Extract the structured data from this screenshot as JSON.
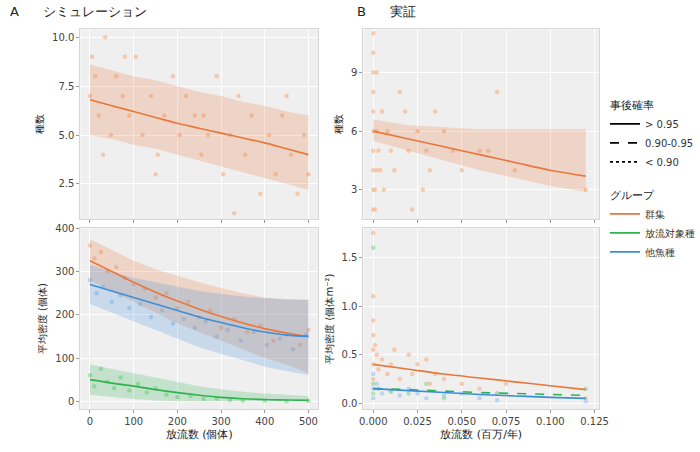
{
  "chart_data": [
    {
      "type": "scatter",
      "title": "シミュレーション",
      "annotations": [
        "A"
      ],
      "y_label": "種数",
      "xlim": [
        -22,
        522
      ],
      "xticks": [
        0,
        100,
        200,
        300,
        400,
        500
      ],
      "ylim": [
        0.7,
        10.4
      ],
      "yticks": [
        {
          "value": 2.5,
          "label": "2.5"
        },
        {
          "value": 5,
          "label": "5.0"
        },
        {
          "value": 7.5,
          "label": "7.5"
        },
        {
          "value": 10,
          "label": "10.0"
        }
      ],
      "grid": true,
      "tick_labels": "y",
      "series": [
        {
          "type": "scatter",
          "color": "#f5b892",
          "x": [
            0,
            5,
            12,
            20,
            35,
            48,
            60,
            75,
            90,
            105,
            120,
            140,
            155,
            170,
            190,
            205,
            220,
            240,
            255,
            270,
            290,
            305,
            320,
            340,
            355,
            370,
            390,
            410,
            425,
            440,
            460,
            475,
            490,
            500,
            30,
            80,
            150,
            260,
            330,
            450
          ],
          "values": [
            7,
            9,
            8,
            6,
            10,
            5,
            8,
            7,
            6,
            9,
            5,
            7,
            4,
            6,
            8,
            5,
            7,
            6,
            4,
            5,
            8,
            3,
            5,
            7,
            4,
            6,
            2,
            5,
            3,
            6,
            4,
            2,
            5,
            3,
            4,
            9,
            3,
            6,
            1,
            7
          ]
        },
        {
          "type": "line",
          "color": "#e8773a",
          "line_style": "solid",
          "x": [
            0,
            50,
            100,
            150,
            200,
            250,
            300,
            350,
            400,
            450,
            500
          ],
          "values": [
            6.8,
            6.5,
            6.2,
            5.9,
            5.6,
            5.35,
            5.1,
            4.85,
            4.6,
            4.3,
            4.0
          ],
          "lower": [
            5.0,
            4.8,
            4.5,
            4.3,
            4.0,
            3.7,
            3.4,
            3.1,
            2.8,
            2.5,
            2.2
          ],
          "upper": [
            8.6,
            8.3,
            8.0,
            7.8,
            7.5,
            7.2,
            7.0,
            6.7,
            6.5,
            6.2,
            6.0
          ]
        }
      ]
    },
    {
      "type": "scatter",
      "x_label": "放流数 (個体)",
      "y_label": "平均密度 (個体)",
      "xlim": [
        -22,
        522
      ],
      "xticks": [
        0,
        100,
        200,
        300,
        400,
        500
      ],
      "ylim": [
        -18,
        400
      ],
      "yticks": [
        0,
        100,
        200,
        300,
        400
      ],
      "grid": true,
      "series": [
        {
          "type": "scatter",
          "name": "群集",
          "color": "#f5b892",
          "x": [
            0,
            10,
            25,
            40,
            60,
            80,
            100,
            125,
            150,
            175,
            200,
            225,
            250,
            275,
            300,
            330,
            360,
            390,
            420,
            450,
            480,
            500
          ],
          "values": [
            360,
            330,
            345,
            300,
            310,
            285,
            270,
            260,
            240,
            250,
            215,
            230,
            195,
            210,
            170,
            190,
            160,
            175,
            140,
            155,
            130,
            165
          ]
        },
        {
          "type": "scatter",
          "name": "他魚種",
          "color": "#a9c8f0",
          "x": [
            0,
            15,
            30,
            50,
            70,
            90,
            115,
            140,
            165,
            190,
            215,
            240,
            265,
            290,
            315,
            345,
            375,
            405,
            435,
            465,
            495
          ],
          "values": [
            280,
            250,
            265,
            230,
            245,
            215,
            225,
            195,
            210,
            180,
            190,
            170,
            185,
            150,
            165,
            140,
            160,
            130,
            145,
            120,
            155
          ]
        },
        {
          "type": "scatter",
          "name": "放流対象種",
          "color": "#8fdc9c",
          "x": [
            0,
            10,
            25,
            40,
            55,
            70,
            90,
            110,
            130,
            150,
            175,
            200,
            230,
            260,
            290,
            320,
            350,
            400,
            450,
            500
          ],
          "values": [
            60,
            35,
            75,
            45,
            30,
            55,
            25,
            40,
            20,
            30,
            15,
            10,
            12,
            5,
            6,
            3,
            2,
            1,
            0,
            1
          ]
        },
        {
          "type": "line",
          "name": "群集",
          "color": "#e8773a",
          "line_style": "solid",
          "x": [
            0,
            50,
            100,
            150,
            200,
            250,
            300,
            350,
            400,
            450,
            500
          ],
          "values": [
            325,
            300,
            275,
            252,
            232,
            213,
            196,
            181,
            168,
            158,
            150
          ],
          "lower": [
            280,
            255,
            230,
            205,
            180,
            160,
            140,
            120,
            100,
            85,
            65
          ],
          "upper": [
            375,
            350,
            325,
            305,
            290,
            275,
            262,
            250,
            240,
            235,
            235
          ]
        },
        {
          "type": "line",
          "name": "他魚種",
          "color": "#3a8fd9",
          "line_style": "solid",
          "x": [
            0,
            50,
            100,
            150,
            200,
            250,
            300,
            350,
            400,
            450,
            500
          ],
          "values": [
            270,
            255,
            240,
            225,
            210,
            195,
            182,
            170,
            160,
            153,
            150
          ],
          "lower": [
            225,
            205,
            185,
            165,
            145,
            125,
            110,
            95,
            80,
            70,
            60
          ],
          "upper": [
            315,
            300,
            285,
            275,
            265,
            255,
            248,
            242,
            238,
            236,
            235
          ]
        },
        {
          "type": "line",
          "name": "放流対象種",
          "color": "#2eb34f",
          "line_style": "solid",
          "x": [
            0,
            50,
            100,
            150,
            200,
            250,
            300,
            350,
            400,
            450,
            500
          ],
          "values": [
            50,
            42,
            35,
            27,
            20,
            14,
            9,
            6,
            4,
            3,
            2
          ],
          "lower": [
            15,
            10,
            5,
            2,
            0,
            0,
            0,
            0,
            0,
            0,
            0
          ],
          "upper": [
            85,
            75,
            65,
            55,
            45,
            35,
            28,
            22,
            18,
            15,
            12
          ]
        }
      ]
    },
    {
      "type": "scatter",
      "title": "実証",
      "annotations": [
        "B"
      ],
      "y_label": "種数",
      "xlim": [
        -0.0055,
        0.1275
      ],
      "xticks": [
        {
          "value": 0,
          "label": "0.000"
        },
        {
          "value": 0.025,
          "label": "0.025"
        },
        {
          "value": 0.05,
          "label": "0.050"
        },
        {
          "value": 0.075,
          "label": "0.075"
        },
        {
          "value": 0.1,
          "label": "0.100"
        },
        {
          "value": 0.125,
          "label": "0.125"
        }
      ],
      "ylim": [
        1.5,
        11.2
      ],
      "yticks": [
        3,
        6,
        9
      ],
      "grid": true,
      "tick_labels": "y",
      "series": [
        {
          "type": "scatter",
          "color": "#f5b892",
          "x": [
            0,
            0,
            0,
            0,
            0,
            0,
            0,
            0,
            0.001,
            0.001,
            0.002,
            0.002,
            0.003,
            0.004,
            0.005,
            0.006,
            0.008,
            0.01,
            0.012,
            0.015,
            0.018,
            0.02,
            0.022,
            0.025,
            0.028,
            0.03,
            0.032,
            0.035,
            0.04,
            0.045,
            0.05,
            0.06,
            0.065,
            0.07,
            0.08,
            0.12,
            0.002,
            0,
            0
          ],
          "values": [
            11,
            10,
            9,
            8,
            7,
            6,
            5,
            4,
            3,
            2,
            9,
            6,
            5,
            4,
            7,
            3,
            6,
            5,
            4,
            8,
            7,
            5,
            2,
            6,
            3,
            5,
            4,
            7,
            6,
            5,
            4,
            5,
            5,
            8,
            4,
            3,
            4,
            3,
            2
          ]
        },
        {
          "type": "line",
          "color": "#e8773a",
          "line_style": "solid",
          "x": [
            0,
            0.02,
            0.04,
            0.06,
            0.08,
            0.1,
            0.12
          ],
          "values": [
            6.0,
            5.6,
            5.2,
            4.8,
            4.4,
            4.0,
            3.7
          ],
          "lower": [
            5.5,
            5.0,
            4.5,
            4.0,
            3.6,
            3.2,
            2.9
          ],
          "upper": [
            6.6,
            6.3,
            6.2,
            6.1,
            6.1,
            6.1,
            6.1
          ]
        }
      ]
    },
    {
      "type": "scatter",
      "x_label": "放流数 (百万/年)",
      "y_label": "平均密度 (個体m⁻²)",
      "xlim": [
        -0.0055,
        0.1275
      ],
      "xticks": [
        {
          "value": 0,
          "label": "0.000"
        },
        {
          "value": 0.025,
          "label": "0.025"
        },
        {
          "value": 0.05,
          "label": "0.050"
        },
        {
          "value": 0.075,
          "label": "0.075"
        },
        {
          "value": 0.1,
          "label": "0.100"
        },
        {
          "value": 0.125,
          "label": "0.125"
        }
      ],
      "ylim": [
        -0.06,
        1.8
      ],
      "yticks": [
        {
          "value": 0,
          "label": "0.0"
        },
        {
          "value": 0.5,
          "label": "0.5"
        },
        {
          "value": 1,
          "label": "1.0"
        },
        {
          "value": 1.5,
          "label": "1.5"
        }
      ],
      "grid": true,
      "series": [
        {
          "type": "scatter",
          "name": "群集",
          "color": "#f5b892",
          "x": [
            0,
            0,
            0,
            0,
            0,
            0,
            0,
            0.001,
            0.002,
            0.003,
            0.005,
            0.008,
            0.01,
            0.012,
            0.015,
            0.02,
            0.022,
            0.025,
            0.03,
            0.032,
            0.035,
            0.04,
            0.05,
            0.06,
            0.07,
            0.075,
            0.12
          ],
          "values": [
            1.75,
            1.1,
            0.85,
            0.7,
            0.55,
            0.4,
            0.25,
            0.6,
            0.5,
            0.35,
            0.45,
            0.3,
            0.4,
            0.55,
            0.25,
            0.5,
            0.3,
            0.4,
            0.45,
            0.2,
            0.3,
            0.25,
            0.2,
            0.15,
            0.1,
            0.2,
            0.05
          ]
        },
        {
          "type": "scatter",
          "name": "他魚種",
          "color": "#a9c8f0",
          "x": [
            0,
            0,
            0,
            0.002,
            0.005,
            0.01,
            0.015,
            0.02,
            0.025,
            0.03,
            0.04,
            0.05,
            0.06,
            0.07,
            0.12
          ],
          "values": [
            0.3,
            0.15,
            0.05,
            0.2,
            0.1,
            0.12,
            0.08,
            0.15,
            0.1,
            0.05,
            0.08,
            0.1,
            0.05,
            0.03,
            0.02
          ]
        },
        {
          "type": "scatter",
          "name": "放流対象種",
          "color": "#8fdc9c",
          "x": [
            0,
            0,
            0,
            0.003,
            0.01,
            0.02,
            0.03,
            0.04,
            0.07,
            0.12
          ],
          "values": [
            1.6,
            0.2,
            0.1,
            0.15,
            0.12,
            0.1,
            0.2,
            0.05,
            0.1,
            0.15
          ]
        },
        {
          "type": "line",
          "name": "群集",
          "color": "#e8773a",
          "line_style": "solid",
          "x": [
            0,
            0.02,
            0.04,
            0.06,
            0.08,
            0.1,
            0.12
          ],
          "values": [
            0.4,
            0.35,
            0.3,
            0.26,
            0.22,
            0.18,
            0.14
          ]
        },
        {
          "type": "line",
          "name": "放流対象種",
          "color": "#2eb34f",
          "line_style": "dash",
          "x": [
            0,
            0.02,
            0.04,
            0.06,
            0.08,
            0.1,
            0.12
          ],
          "values": [
            0.15,
            0.14,
            0.125,
            0.11,
            0.1,
            0.09,
            0.08
          ]
        },
        {
          "type": "line",
          "name": "他魚種",
          "color": "#3a8fd9",
          "line_style": "solid",
          "x": [
            0,
            0.02,
            0.04,
            0.06,
            0.08,
            0.1,
            0.12
          ],
          "values": [
            0.15,
            0.13,
            0.11,
            0.09,
            0.075,
            0.06,
            0.05
          ]
        }
      ]
    }
  ],
  "legend_sections": [
    {
      "title": "事後確率",
      "items": [
        {
          "name": "> 0.95",
          "line_style": "solid",
          "color": "#000000"
        },
        {
          "name": "0.90-0.95",
          "line_style": "dash",
          "color": "#000000"
        },
        {
          "name": "< 0.90",
          "line_style": "dot",
          "color": "#000000"
        }
      ]
    },
    {
      "title": "グループ",
      "items": [
        {
          "name": "群集",
          "line_style": "solid",
          "color": "#e8773a"
        },
        {
          "name": "放流対象種",
          "line_style": "solid",
          "color": "#2eb34f"
        },
        {
          "name": "他魚種",
          "line_style": "solid",
          "color": "#3a8fd9"
        }
      ]
    }
  ]
}
